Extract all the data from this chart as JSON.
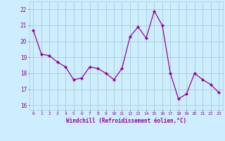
{
  "x": [
    0,
    1,
    2,
    3,
    4,
    5,
    6,
    7,
    8,
    9,
    10,
    11,
    12,
    13,
    14,
    15,
    16,
    17,
    18,
    19,
    20,
    21,
    22,
    23
  ],
  "y": [
    20.7,
    19.2,
    19.1,
    18.7,
    18.4,
    17.6,
    17.7,
    18.4,
    18.3,
    18.0,
    17.6,
    18.3,
    20.3,
    20.9,
    20.2,
    21.9,
    21.0,
    18.0,
    16.4,
    16.7,
    18.0,
    17.6,
    17.3,
    16.8
  ],
  "line_color": "#990099",
  "marker": "D",
  "marker_size": 2.2,
  "bg_color": "#cceeff",
  "grid_color": "#aacccc",
  "xlabel": "Windchill (Refroidissement éolien,°C)",
  "xlabel_color": "#990099",
  "tick_color": "#990099",
  "ylabel_ticks": [
    16,
    17,
    18,
    19,
    20,
    21,
    22
  ],
  "ylim": [
    15.7,
    22.5
  ],
  "xlim": [
    -0.5,
    23.5
  ],
  "xticks": [
    0,
    1,
    2,
    3,
    4,
    5,
    6,
    7,
    8,
    9,
    10,
    11,
    12,
    13,
    14,
    15,
    16,
    17,
    18,
    19,
    20,
    21,
    22,
    23
  ]
}
